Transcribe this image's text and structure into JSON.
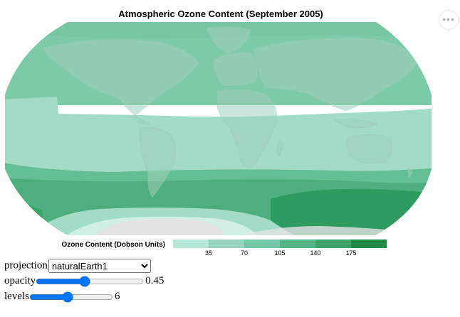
{
  "title": "Atmospheric Ozone Content (September 2005)",
  "menu_icon": "ellipsis-icon",
  "map": {
    "projection": "naturalEarth1",
    "ocean_color": "#7ccaa8",
    "land_color": "#9fcfb9",
    "antarctica_color": "#e2e2e2",
    "bands": [
      {
        "name": "north-polar",
        "color": "#77c6a3"
      },
      {
        "name": "northern-midlatitudes",
        "color": "#7dcaa8"
      },
      {
        "name": "tropics",
        "color": "#a3dcc6"
      },
      {
        "name": "southern-midlatitudes",
        "color": "#64be96"
      },
      {
        "name": "southern-high",
        "color": "#4fae7f"
      },
      {
        "name": "ozone-max",
        "color": "#2f9b61"
      },
      {
        "name": "ozone-hole-edge",
        "color": "#a3dcc6"
      },
      {
        "name": "ozone-hole",
        "color": "#d0eee2"
      }
    ]
  },
  "legend": {
    "title": "Ozone Content (Dobson Units)",
    "colors": [
      "#b8e6d8",
      "#96d6c0",
      "#74c6a6",
      "#54b485",
      "#3ca36a",
      "#1f8a48"
    ],
    "ticks": [
      "35",
      "70",
      "105",
      "140",
      "175"
    ]
  },
  "controls": {
    "projection_label": "projection",
    "projection_value": "naturalEarth1",
    "projection_options": [
      "naturalEarth1"
    ],
    "opacity_label": "opacity",
    "opacity_value": "0.45",
    "levels_label": "levels",
    "levels_value": "6"
  }
}
